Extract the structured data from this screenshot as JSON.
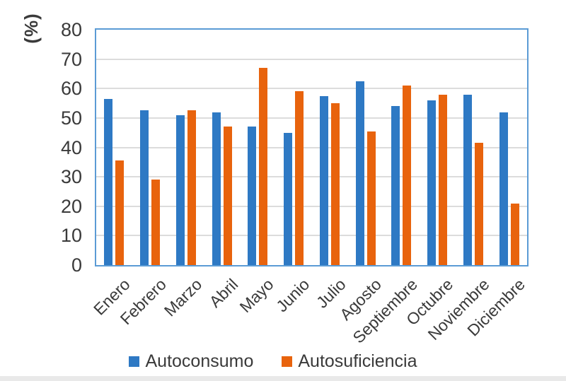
{
  "chart_data": {
    "type": "bar",
    "title": "",
    "y_axis_title": "(%)",
    "categories": [
      "Enero",
      "Febrero",
      "Marzo",
      "Abril",
      "Mayo",
      "Junio",
      "Julio",
      "Agosto",
      "Septiembre",
      "Octubre",
      "Noviembre",
      "Diciembre"
    ],
    "series": [
      {
        "name": "Autoconsumo",
        "color": "#2E79C4",
        "values": [
          56.5,
          52.5,
          51,
          52,
          47,
          45,
          57.5,
          62.5,
          54,
          56,
          58,
          52
        ]
      },
      {
        "name": "Autosuficiencia",
        "color": "#E8630D",
        "values": [
          35.5,
          29,
          52.5,
          47,
          67,
          59,
          55,
          45.5,
          61,
          58,
          41.5,
          21
        ]
      }
    ],
    "ylim": [
      0,
      80
    ],
    "y_ticks": [
      "0",
      "10",
      "20",
      "30",
      "40",
      "50",
      "60",
      "70",
      "80"
    ],
    "grid": "horizontal",
    "legend_position": "bottom-center",
    "x_labels_rotation_deg": -45
  },
  "styles": {
    "plot_border_color": "#5B9BD5",
    "gridline_color": "#DCDCDC",
    "text_color": "#3A3A3A",
    "background": "#FFFFFF"
  }
}
